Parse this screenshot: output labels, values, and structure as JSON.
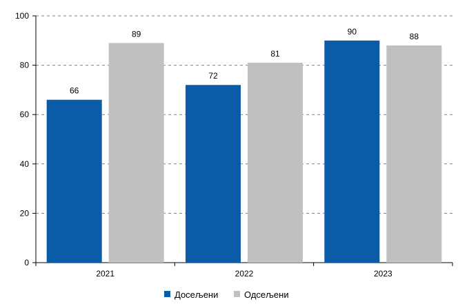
{
  "chart_data": {
    "type": "bar",
    "categories": [
      "2021",
      "2022",
      "2023"
    ],
    "series": [
      {
        "name": "Досељени",
        "values": [
          66,
          72,
          90
        ],
        "color": "#0a5ca8"
      },
      {
        "name": "Одсељени",
        "values": [
          89,
          81,
          88
        ],
        "color": "#c0c0c0"
      }
    ],
    "ylim": [
      0,
      100
    ],
    "yticks": [
      0,
      20,
      40,
      60,
      80,
      100
    ],
    "grid": true,
    "legend": "bottom-center",
    "data_labels": true,
    "title": "",
    "xlabel": "",
    "ylabel": ""
  }
}
